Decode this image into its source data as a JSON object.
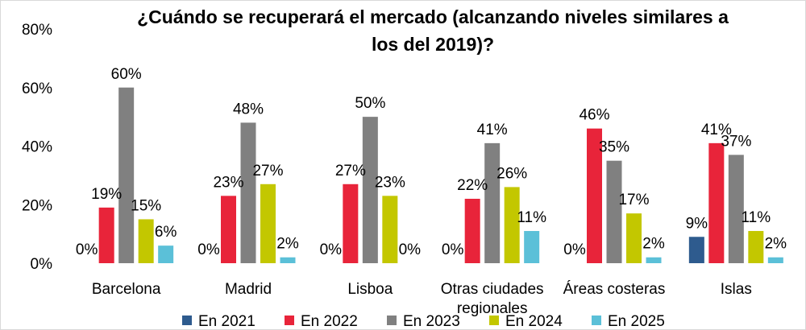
{
  "chart_data": {
    "type": "bar",
    "title_lines": [
      "¿Cuándo se recuperará el mercado (alcanzando niveles similares a",
      "los del 2019)?"
    ],
    "categories": [
      [
        "Barcelona"
      ],
      [
        "Madrid"
      ],
      [
        "Lisboa"
      ],
      [
        "Otras ciudades",
        "regionales"
      ],
      [
        "Áreas costeras"
      ],
      [
        "Islas"
      ]
    ],
    "series": [
      {
        "name": "En 2021",
        "color": "#2e5b8e",
        "values": [
          0,
          0,
          0,
          0,
          0,
          9
        ]
      },
      {
        "name": "En 2022",
        "color": "#e8243a",
        "values": [
          19,
          23,
          27,
          22,
          46,
          41
        ]
      },
      {
        "name": "En 2023",
        "color": "#808080",
        "values": [
          60,
          48,
          50,
          41,
          35,
          37
        ]
      },
      {
        "name": "En 2024",
        "color": "#c3c700",
        "values": [
          15,
          27,
          23,
          26,
          17,
          11
        ]
      },
      {
        "name": "En 2025",
        "color": "#5bc0d8",
        "values": [
          6,
          2,
          0,
          11,
          2,
          2
        ]
      }
    ],
    "y_ticks": [
      "0%",
      "20%",
      "40%",
      "60%",
      "80%"
    ],
    "ylim": [
      0,
      80
    ],
    "value_suffix": "%",
    "grid": false,
    "legend_position": "bottom"
  }
}
